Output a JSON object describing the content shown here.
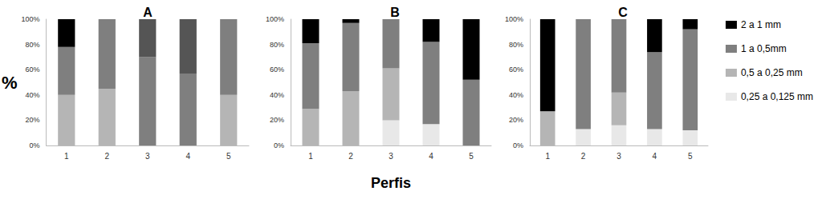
{
  "chart_data": [
    {
      "type": "bar",
      "title": "A",
      "stacked": true,
      "grid": false,
      "ylabel": "%",
      "categories": [
        "1",
        "2",
        "3",
        "4",
        "5"
      ],
      "ylim": [
        0,
        100
      ],
      "yticks": [
        {
          "value": 0,
          "label": "0%"
        },
        {
          "value": 20,
          "label": "20%"
        },
        {
          "value": 40,
          "label": "40%"
        },
        {
          "value": 60,
          "label": "60%"
        },
        {
          "value": 80,
          "label": "80%"
        },
        {
          "value": 100,
          "label": "100%"
        }
      ],
      "series": [
        {
          "name": "0,25 a 0,125 mm",
          "color": "#e8e8e8",
          "values": [
            0,
            0,
            0,
            0,
            0
          ]
        },
        {
          "name": "0,5 a 0,25 mm",
          "color": "#b5b5b5",
          "values": [
            40,
            45,
            0,
            0,
            40
          ]
        },
        {
          "name": "1 a 0,5mm",
          "color": "#7f7f7f",
          "values": [
            38,
            55,
            70,
            57,
            60
          ]
        },
        {
          "name": "2 a 1 mm",
          "color": "#000000",
          "colors": [
            "#000000",
            "#000000",
            "#555555",
            "#555555",
            "#000000"
          ],
          "values": [
            22,
            0,
            30,
            43,
            0
          ]
        }
      ]
    },
    {
      "type": "bar",
      "title": "B",
      "stacked": true,
      "grid": false,
      "xlabel": "Perfis",
      "categories": [
        "1",
        "2",
        "3",
        "4",
        "5"
      ],
      "ylim": [
        0,
        100
      ],
      "yticks": [
        {
          "value": 0,
          "label": "0%"
        },
        {
          "value": 20,
          "label": "20%"
        },
        {
          "value": 40,
          "label": "40%"
        },
        {
          "value": 60,
          "label": "60%"
        },
        {
          "value": 80,
          "label": "80%"
        },
        {
          "value": 100,
          "label": "100%"
        }
      ],
      "series": [
        {
          "name": "0,25 a 0,125 mm",
          "color": "#e8e8e8",
          "values": [
            0,
            0,
            20,
            17,
            0
          ]
        },
        {
          "name": "0,5 a 0,25 mm",
          "color": "#b5b5b5",
          "values": [
            29,
            43,
            41,
            0,
            0
          ]
        },
        {
          "name": "1 a 0,5mm",
          "color": "#7f7f7f",
          "values": [
            52,
            54,
            39,
            65,
            52
          ]
        },
        {
          "name": "2 a 1 mm",
          "color": "#000000",
          "values": [
            19,
            3,
            0,
            18,
            48
          ]
        }
      ]
    },
    {
      "type": "bar",
      "title": "C",
      "stacked": true,
      "grid": false,
      "legend": "right",
      "categories": [
        "1",
        "2",
        "3",
        "4",
        "5"
      ],
      "ylim": [
        0,
        100
      ],
      "yticks": [
        {
          "value": 0,
          "label": "0%"
        },
        {
          "value": 20,
          "label": "20%"
        },
        {
          "value": 40,
          "label": "40%"
        },
        {
          "value": 60,
          "label": "60%"
        },
        {
          "value": 80,
          "label": "80%"
        },
        {
          "value": 100,
          "label": "100%"
        }
      ],
      "series": [
        {
          "name": "0,25 a 0,125 mm",
          "color": "#e8e8e8",
          "values": [
            0,
            13,
            16,
            13,
            12
          ]
        },
        {
          "name": "0,5 a 0,25 mm",
          "color": "#b5b5b5",
          "values": [
            27,
            0,
            26,
            0,
            0
          ]
        },
        {
          "name": "1 a 0,5mm",
          "color": "#7f7f7f",
          "values": [
            0,
            87,
            58,
            61,
            80
          ]
        },
        {
          "name": "2 a 1 mm",
          "color": "#000000",
          "values": [
            73,
            0,
            0,
            26,
            8
          ]
        }
      ]
    }
  ]
}
